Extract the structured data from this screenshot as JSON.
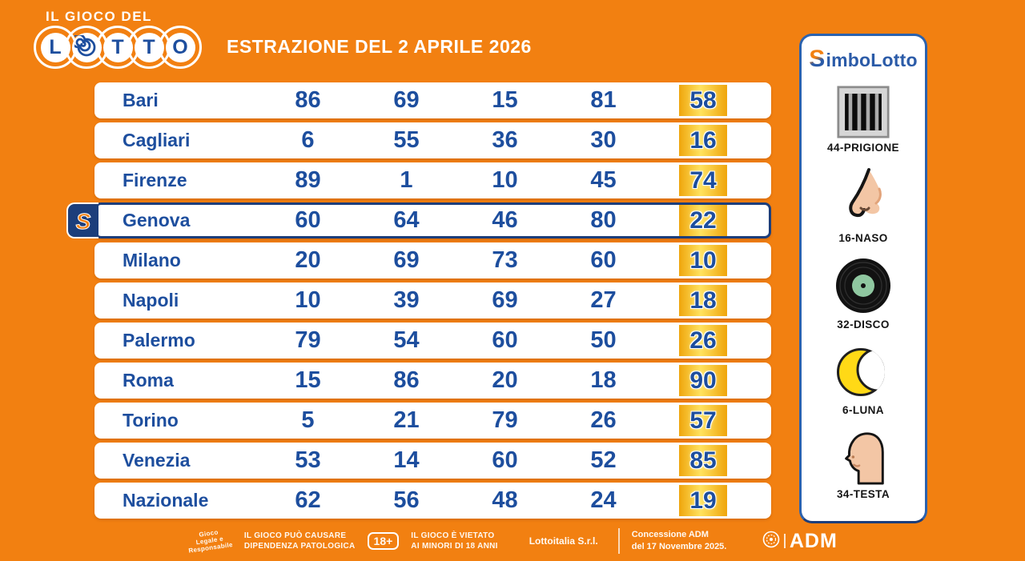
{
  "header": {
    "logo": {
      "top_line": "IL GIOCO DEL",
      "letters": [
        "L",
        "O",
        "T",
        "T",
        "O"
      ],
      "spiral_index": 1
    },
    "title": "ESTRAZIONE DEL 2 APRILE 2026"
  },
  "table": {
    "rows": [
      {
        "city": "Bari",
        "numbers": [
          "86",
          "69",
          "15",
          "81"
        ],
        "fifth": "58",
        "simbolotto": false
      },
      {
        "city": "Cagliari",
        "numbers": [
          "6",
          "55",
          "36",
          "30"
        ],
        "fifth": "16",
        "simbolotto": false
      },
      {
        "city": "Firenze",
        "numbers": [
          "89",
          "1",
          "10",
          "45"
        ],
        "fifth": "74",
        "simbolotto": false
      },
      {
        "city": "Genova",
        "numbers": [
          "60",
          "64",
          "46",
          "80"
        ],
        "fifth": "22",
        "simbolotto": true
      },
      {
        "city": "Milano",
        "numbers": [
          "20",
          "69",
          "73",
          "60"
        ],
        "fifth": "10",
        "simbolotto": false
      },
      {
        "city": "Napoli",
        "numbers": [
          "10",
          "39",
          "69",
          "27"
        ],
        "fifth": "18",
        "simbolotto": false
      },
      {
        "city": "Palermo",
        "numbers": [
          "79",
          "54",
          "60",
          "50"
        ],
        "fifth": "26",
        "simbolotto": false
      },
      {
        "city": "Roma",
        "numbers": [
          "15",
          "86",
          "20",
          "18"
        ],
        "fifth": "90",
        "simbolotto": false
      },
      {
        "city": "Torino",
        "numbers": [
          "5",
          "21",
          "79",
          "26"
        ],
        "fifth": "57",
        "simbolotto": false
      },
      {
        "city": "Venezia",
        "numbers": [
          "53",
          "14",
          "60",
          "52"
        ],
        "fifth": "85",
        "simbolotto": false
      },
      {
        "city": "Nazionale",
        "numbers": [
          "62",
          "56",
          "48",
          "24"
        ],
        "fifth": "19",
        "simbolotto": false
      }
    ]
  },
  "simbolotto_panel": {
    "title_initial": "S",
    "title_rest": "imboLotto",
    "symbols": [
      {
        "label": "44-PRIGIONE",
        "icon": "prison-bars-icon"
      },
      {
        "label": "16-NASO",
        "icon": "nose-icon"
      },
      {
        "label": "32-DISCO",
        "icon": "vinyl-record-icon"
      },
      {
        "label": "6-LUNA",
        "icon": "crescent-moon-icon"
      },
      {
        "label": "34-TESTA",
        "icon": "head-icon"
      }
    ]
  },
  "footer": {
    "legal_logo_lines": [
      "Gioco",
      "Legale e",
      "Responsabile"
    ],
    "warning1_line1": "IL GIOCO PUÒ CAUSARE",
    "warning1_line2": "DIPENDENZA PATOLOGICA",
    "age_badge": "18+",
    "warning2_line1": "IL GIOCO È VIETATO",
    "warning2_line2": "AI MINORI DI 18 ANNI",
    "company": "Lottoitalia S.r.l.",
    "concession_line1": "Concessione ADM",
    "concession_line2": "del 17 Novembre 2025.",
    "adm_label": "ADM"
  },
  "colors": {
    "background": "#F28011",
    "primary_blue": "#1D4E9E",
    "navy": "#1C3E7B",
    "highlight_yellow": "#FFE25E",
    "highlight_gold": "#EFA50C",
    "panel_border": "#2B62AE",
    "white": "#FFFFFF"
  }
}
